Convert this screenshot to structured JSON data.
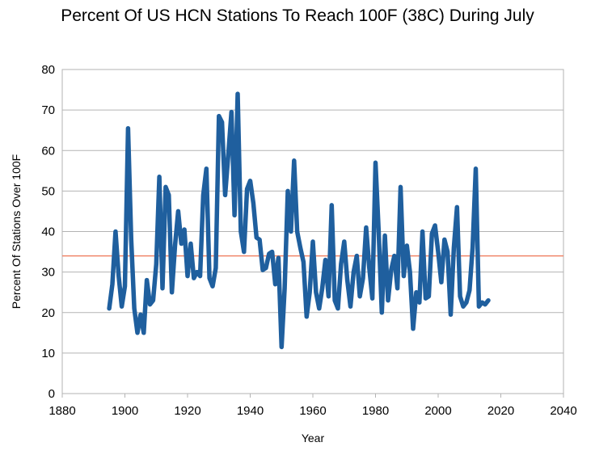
{
  "chart_data": {
    "type": "line",
    "title": "Percent Of US HCN Stations To Reach 100F (38C) During July",
    "xlabel": "Year",
    "ylabel": "Percent Of Stations Over 100F",
    "xlim": [
      1880,
      2040
    ],
    "ylim": [
      0,
      80
    ],
    "x_ticks": [
      1880,
      1900,
      1920,
      1940,
      1960,
      1980,
      2000,
      2020,
      2040
    ],
    "y_ticks": [
      0,
      10,
      20,
      30,
      40,
      50,
      60,
      70,
      80
    ],
    "grid": true,
    "legend": "none",
    "series": [
      {
        "color": "#1f5f9e",
        "x": [
          1895,
          1896,
          1897,
          1898,
          1899,
          1900,
          1901,
          1902,
          1903,
          1904,
          1905,
          1906,
          1907,
          1908,
          1909,
          1910,
          1911,
          1912,
          1913,
          1914,
          1915,
          1916,
          1917,
          1918,
          1919,
          1920,
          1921,
          1922,
          1923,
          1924,
          1925,
          1926,
          1927,
          1928,
          1929,
          1930,
          1931,
          1932,
          1933,
          1934,
          1935,
          1936,
          1937,
          1938,
          1939,
          1940,
          1941,
          1942,
          1943,
          1944,
          1945,
          1946,
          1947,
          1948,
          1949,
          1950,
          1951,
          1952,
          1953,
          1954,
          1955,
          1956,
          1957,
          1958,
          1959,
          1960,
          1961,
          1962,
          1963,
          1964,
          1965,
          1966,
          1967,
          1968,
          1969,
          1970,
          1971,
          1972,
          1973,
          1974,
          1975,
          1976,
          1977,
          1978,
          1979,
          1980,
          1981,
          1982,
          1983,
          1984,
          1985,
          1986,
          1987,
          1988,
          1989,
          1990,
          1991,
          1992,
          1993,
          1994,
          1995,
          1996,
          1997,
          1998,
          1999,
          2000,
          2001,
          2002,
          2003,
          2004,
          2005,
          2006,
          2007,
          2008,
          2009,
          2010,
          2011,
          2012,
          2013,
          2014,
          2015,
          2016
        ],
        "values": [
          21,
          27,
          40,
          29,
          21.5,
          26.5,
          65.5,
          38,
          21,
          15,
          19.5,
          15,
          28,
          22,
          23,
          32,
          53.5,
          26,
          51,
          49,
          25,
          36.5,
          45,
          37,
          40.5,
          29,
          37,
          28.5,
          30,
          29,
          49,
          55.5,
          28.5,
          26.5,
          31,
          68.5,
          67,
          49,
          59,
          69.5,
          44,
          74,
          40,
          35,
          50.5,
          52.5,
          47,
          38.5,
          38,
          30.5,
          31,
          34.5,
          35,
          27,
          33.5,
          11.5,
          26,
          50,
          40,
          57.5,
          40,
          36,
          32.5,
          19,
          25,
          37.5,
          25,
          21,
          26,
          33,
          24,
          46.5,
          23,
          21,
          32,
          37.5,
          28,
          21.5,
          30,
          34,
          24,
          28.5,
          41,
          31,
          23.5,
          57,
          40,
          20,
          39,
          23,
          30.5,
          34,
          26,
          51,
          29,
          36.5,
          30,
          16,
          25,
          22.5,
          40,
          23.5,
          24,
          39.5,
          41.5,
          35,
          27.5,
          38,
          35,
          19.5,
          36,
          46,
          24,
          21.5,
          22.5,
          25.5,
          36,
          55.5,
          21.5,
          22.5,
          22,
          23
        ]
      }
    ],
    "reference_line": {
      "y": 34,
      "color": "#f0866a"
    }
  }
}
